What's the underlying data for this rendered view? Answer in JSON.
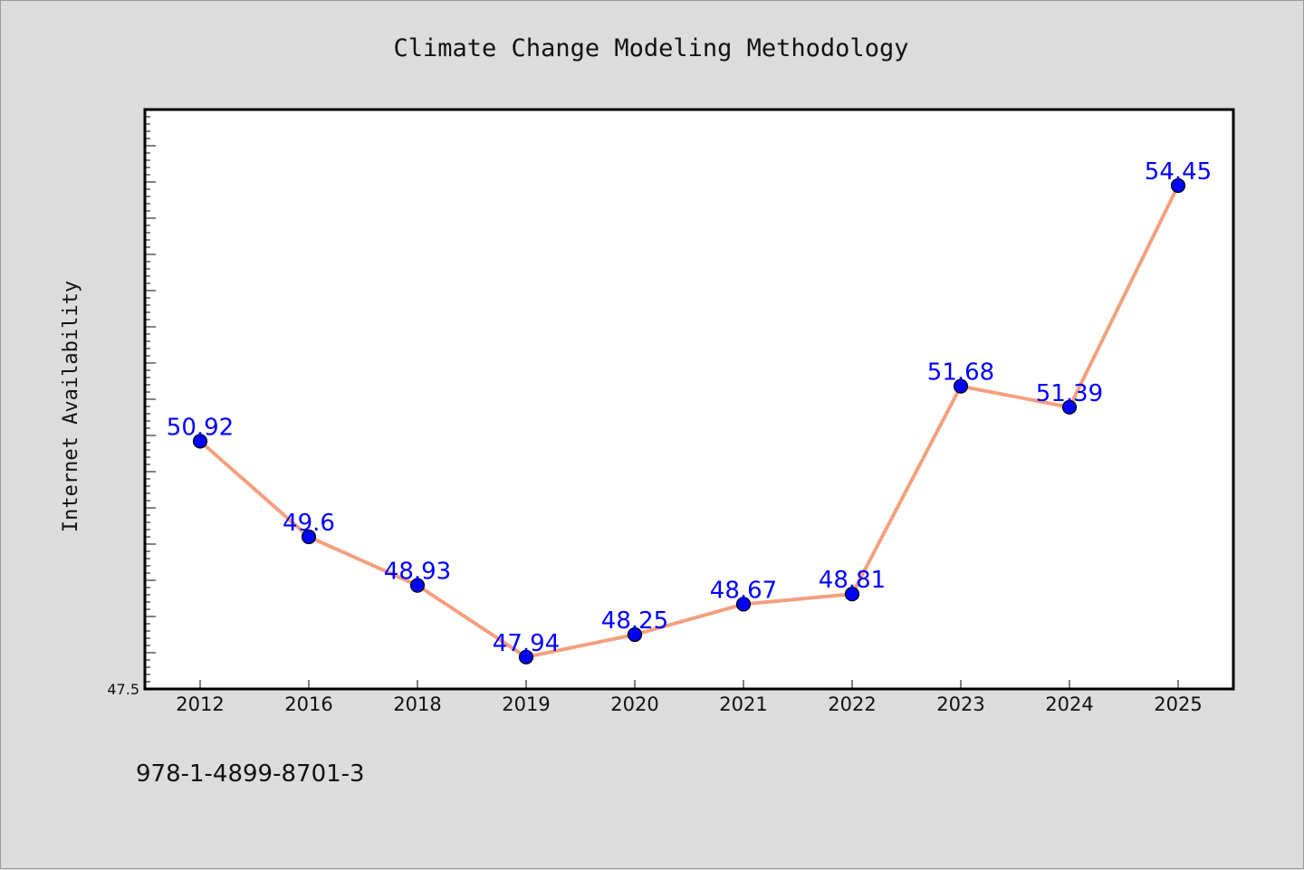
{
  "chart_data": {
    "type": "line",
    "title": "Climate Change Modeling Methodology",
    "xlabel": "",
    "ylabel": "Internet Availability",
    "categories": [
      "2012",
      "2016",
      "2018",
      "2019",
      "2020",
      "2021",
      "2022",
      "2023",
      "2024",
      "2025"
    ],
    "series": [
      {
        "values": [
          50.92,
          49.6,
          48.93,
          47.94,
          48.25,
          48.67,
          48.81,
          51.68,
          51.39,
          54.45
        ],
        "labels": [
          "50.92",
          "49.6",
          "48.93",
          "47.94",
          "48.25",
          "48.67",
          "48.81",
          "51.68",
          "51.39",
          "54.45"
        ]
      }
    ],
    "ylim": [
      47.5,
      55.5
    ],
    "yticks": [
      {
        "value": 47.5,
        "label": "47.5"
      }
    ],
    "grid": false,
    "legend": "none",
    "colors": {
      "line": "#f4a07e",
      "marker": "#0000ff",
      "marker_edge": "#000000",
      "data_label": "#0000ff",
      "plot_bg": "#ffffff",
      "figure_bg": "#dcdcdc"
    }
  },
  "footnote": "978-1-4899-8701-3"
}
